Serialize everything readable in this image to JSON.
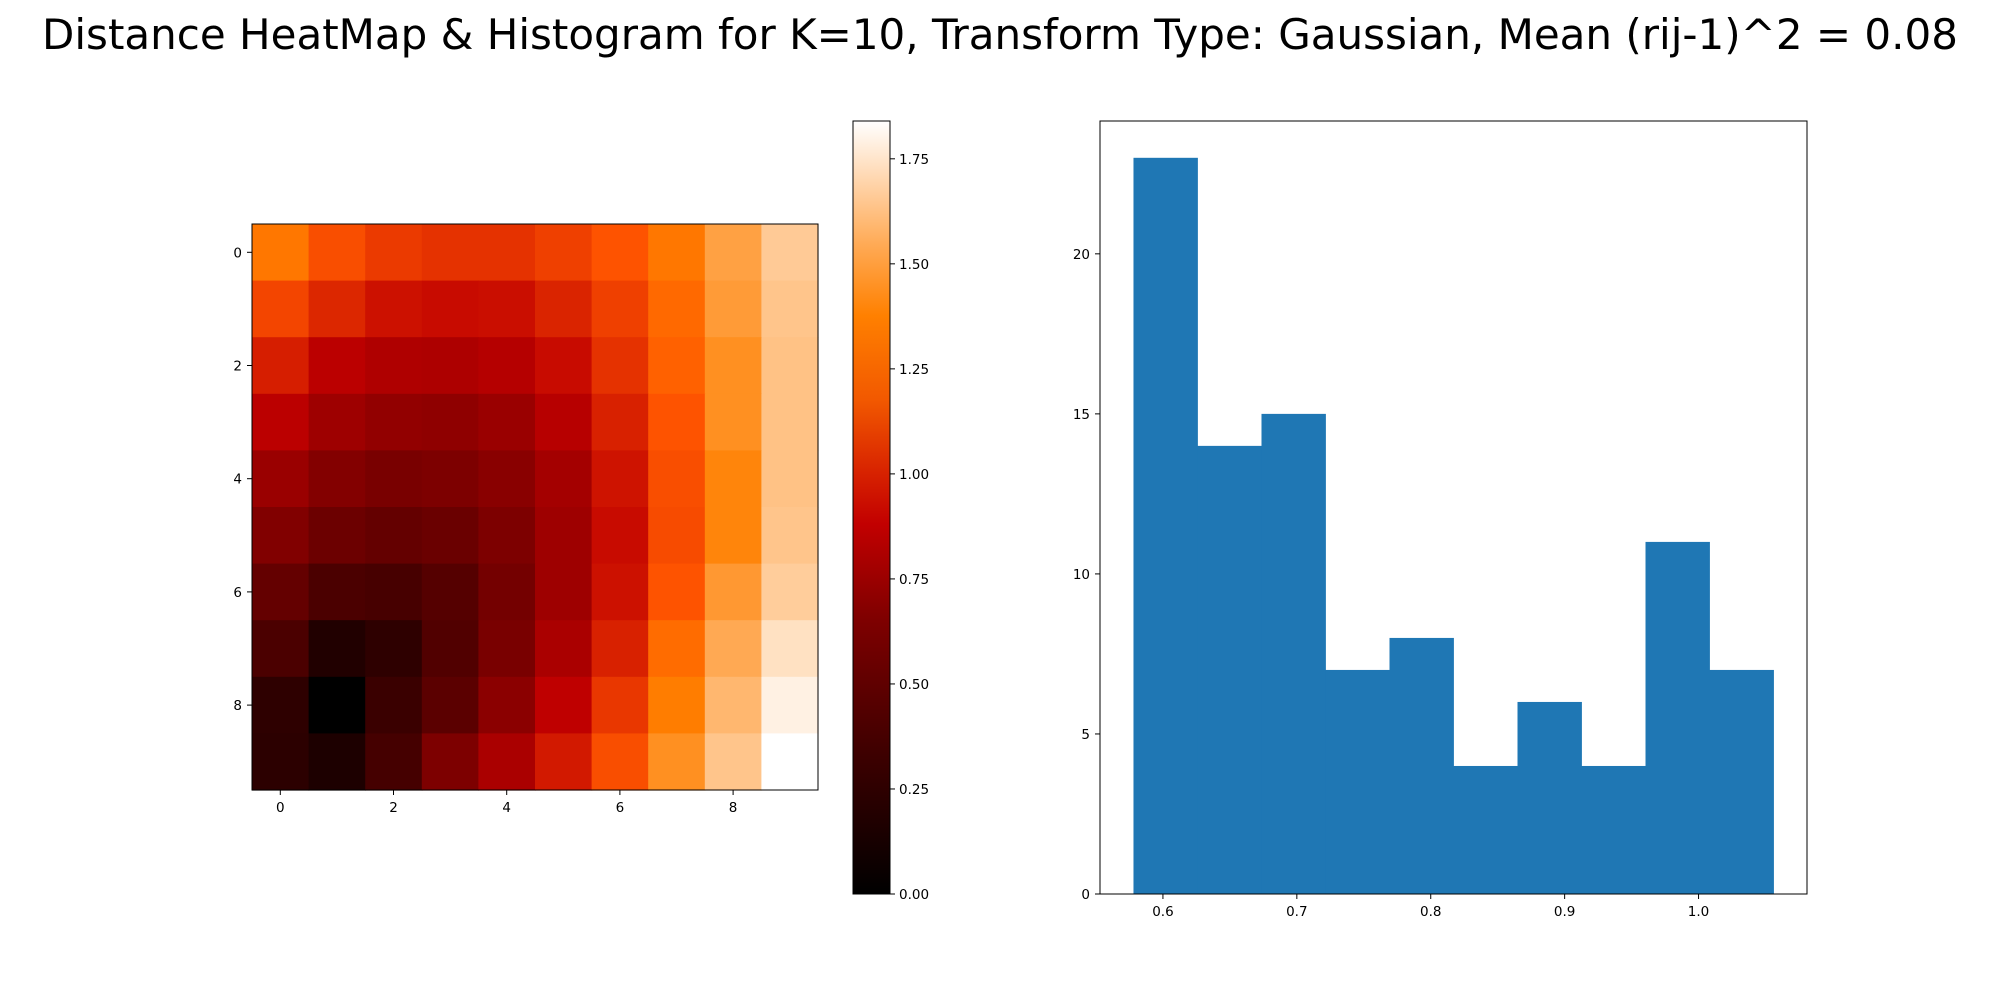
{
  "title": "Distance HeatMap & Histogram for K=10, Transform Type: Gaussian, Mean (rij-1)^2 = 0.08",
  "chart_data": [
    {
      "type": "heatmap",
      "colormap": "gist_heat",
      "rows": 10,
      "cols": 10,
      "x_ticks": [
        "0",
        "2",
        "4",
        "6",
        "8"
      ],
      "y_ticks": [
        "0",
        "2",
        "4",
        "6",
        "8"
      ],
      "values": [
        [
          1.35,
          1.2,
          1.13,
          1.1,
          1.1,
          1.15,
          1.22,
          1.35,
          1.5,
          1.65
        ],
        [
          1.17,
          1.06,
          0.98,
          0.96,
          0.97,
          1.05,
          1.15,
          1.3,
          1.48,
          1.63
        ],
        [
          1.03,
          0.9,
          0.84,
          0.83,
          0.87,
          0.96,
          1.1,
          1.27,
          1.44,
          1.62
        ],
        [
          0.9,
          0.76,
          0.7,
          0.69,
          0.74,
          0.88,
          1.04,
          1.22,
          1.44,
          1.62
        ],
        [
          0.74,
          0.63,
          0.58,
          0.6,
          0.66,
          0.79,
          0.99,
          1.2,
          1.4,
          1.62
        ],
        [
          0.62,
          0.52,
          0.48,
          0.51,
          0.6,
          0.76,
          0.96,
          1.19,
          1.4,
          1.63
        ],
        [
          0.48,
          0.36,
          0.34,
          0.41,
          0.56,
          0.76,
          0.98,
          1.22,
          1.47,
          1.66
        ],
        [
          0.36,
          0.16,
          0.22,
          0.39,
          0.58,
          0.82,
          1.04,
          1.31,
          1.53,
          1.73
        ],
        [
          0.22,
          0.0,
          0.28,
          0.44,
          0.67,
          0.92,
          1.12,
          1.37,
          1.58,
          1.79
        ],
        [
          0.21,
          0.14,
          0.33,
          0.6,
          0.82,
          1.01,
          1.2,
          1.44,
          1.63,
          1.84
        ]
      ],
      "colorbar": {
        "range": [
          0,
          1.84
        ],
        "ticks": [
          "0.00",
          "0.25",
          "0.50",
          "0.75",
          "1.00",
          "1.25",
          "1.50",
          "1.75"
        ],
        "tick_values": [
          0,
          0.25,
          0.5,
          0.75,
          1.0,
          1.25,
          1.5,
          1.75
        ]
      }
    },
    {
      "type": "bar",
      "subtype": "histogram",
      "bin_edges": [
        0.578,
        0.6258,
        0.6736,
        0.7214,
        0.7692,
        0.817,
        0.8648,
        0.9126,
        0.9604,
        1.0082,
        1.056
      ],
      "values": [
        23,
        14,
        15,
        7,
        8,
        4,
        6,
        4,
        11,
        7
      ],
      "color": "#1f77b4",
      "xlim": [
        0.553,
        1.081
      ],
      "ylim": [
        0,
        24.15
      ],
      "x_ticks": [
        "0.6",
        "0.7",
        "0.8",
        "0.9",
        "1.0"
      ],
      "x_tick_values": [
        0.6,
        0.7,
        0.8,
        0.9,
        1.0
      ],
      "y_ticks": [
        "0",
        "5",
        "10",
        "15",
        "20"
      ],
      "y_tick_values": [
        0,
        5,
        10,
        15,
        20
      ]
    }
  ]
}
